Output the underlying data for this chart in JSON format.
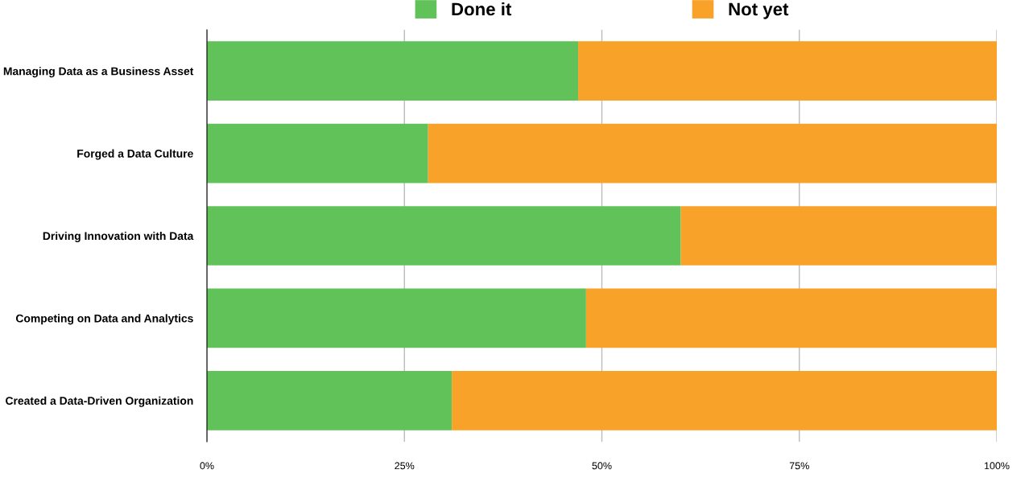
{
  "chart_data": {
    "type": "bar",
    "orientation": "horizontal",
    "stacked": true,
    "categories": [
      "Managing Data as a Business Asset",
      "Forged a Data Culture",
      "Driving Innovation with Data",
      "Competing on Data and Analytics",
      "Created a Data-Driven Organization"
    ],
    "series": [
      {
        "name": "Done it",
        "color": "#62c25a",
        "values": [
          47,
          28,
          60,
          48,
          31
        ]
      },
      {
        "name": "Not yet",
        "color": "#f9a22a",
        "values": [
          53,
          72,
          40,
          52,
          69
        ]
      }
    ],
    "xlim": [
      0,
      100
    ],
    "xticks": [
      {
        "value": 0,
        "label": "0%"
      },
      {
        "value": 25,
        "label": "25%"
      },
      {
        "value": 50,
        "label": "50%"
      },
      {
        "value": 75,
        "label": "75%"
      },
      {
        "value": 100,
        "label": "100%"
      }
    ],
    "grid": "x",
    "legend": "top"
  }
}
